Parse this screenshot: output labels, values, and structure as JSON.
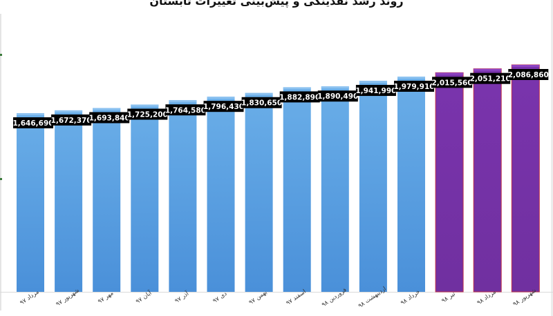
{
  "chart_data": {
    "type": "bar",
    "title": "روند رشد نقدینگی و پیش‌بینی تغییرات تابستان",
    "categories": [
      "مرداد ۹۷",
      "شهریور ۹۷",
      "مهر ۹۷",
      "آبان ۹۷",
      "آذر ۹۷",
      "دی ۹۷",
      "بهمن ۹۷",
      "اسفند ۹۷",
      "فروردین ۹۸",
      "اردیبهشت ۹۸",
      "خرداد ۹۸",
      "تیر ۹۸",
      "مرداد ۹۸",
      "شهریور ۹۸"
    ],
    "values": [
      1646690,
      1672370,
      1693840,
      1725200,
      1764580,
      1796430,
      1830650,
      1882890,
      1890490,
      1941990,
      1979910,
      2015560,
      2051210,
      2086860
    ],
    "value_labels": [
      "1,646,690",
      "1,672,370",
      "1,693,840",
      "1,725,200",
      "1,764,580",
      "1,796,430",
      "1,830,650",
      "1,882,890",
      "1,890,490",
      "1,941,990",
      "1,979,910",
      "2,015,560",
      "2,051,210",
      "2,086,860"
    ],
    "forecast_from_index": 11,
    "colors": {
      "actual": "#4a90d9",
      "actual_light": "#6aaee8",
      "forecast": "#7030a0",
      "forecast_border": "#c0304a",
      "label_bg": "#000000",
      "label_text": "#ffffff"
    },
    "grid": false,
    "legend": "none"
  }
}
